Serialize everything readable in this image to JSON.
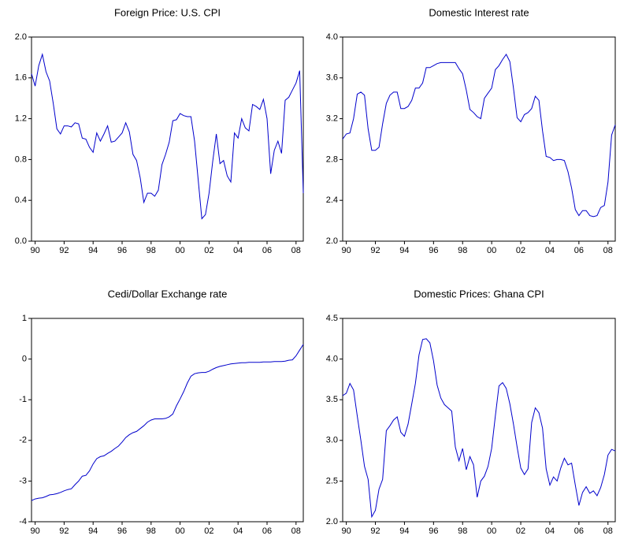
{
  "chart_data": [
    {
      "type": "line",
      "title": "Foreign Price: U.S. CPI",
      "color": "#0000cc",
      "x": [
        1989.75,
        1990,
        1990.25,
        1990.5,
        1990.75,
        1991,
        1991.25,
        1991.5,
        1991.75,
        1992,
        1992.25,
        1992.5,
        1992.75,
        1993,
        1993.25,
        1993.5,
        1993.75,
        1994,
        1994.25,
        1994.5,
        1994.75,
        1995,
        1995.25,
        1995.5,
        1995.75,
        1996,
        1996.25,
        1996.5,
        1996.75,
        1997,
        1997.25,
        1997.5,
        1997.75,
        1998,
        1998.25,
        1998.5,
        1998.75,
        1999,
        1999.25,
        1999.5,
        1999.75,
        2000,
        2000.25,
        2000.5,
        2000.75,
        2001,
        2001.25,
        2001.5,
        2001.75,
        2002,
        2002.25,
        2002.5,
        2002.75,
        2003,
        2003.25,
        2003.5,
        2003.75,
        2004,
        2004.25,
        2004.5,
        2004.75,
        2005,
        2005.25,
        2005.5,
        2005.75,
        2006,
        2006.25,
        2006.5,
        2006.75,
        2007,
        2007.25,
        2007.5,
        2007.75,
        2008,
        2008.25,
        2008.5
      ],
      "values": [
        1.64,
        1.52,
        1.72,
        1.83,
        1.66,
        1.57,
        1.35,
        1.1,
        1.05,
        1.13,
        1.13,
        1.12,
        1.16,
        1.15,
        1.01,
        1.0,
        0.92,
        0.87,
        1.06,
        0.98,
        1.05,
        1.13,
        0.97,
        0.98,
        1.02,
        1.06,
        1.16,
        1.07,
        0.85,
        0.79,
        0.62,
        0.38,
        0.47,
        0.47,
        0.44,
        0.5,
        0.75,
        0.85,
        0.97,
        1.18,
        1.19,
        1.25,
        1.23,
        1.22,
        1.22,
        0.98,
        0.6,
        0.22,
        0.26,
        0.47,
        0.78,
        1.05,
        0.76,
        0.79,
        0.64,
        0.58,
        1.06,
        1.01,
        1.2,
        1.11,
        1.08,
        1.34,
        1.32,
        1.29,
        1.39,
        1.2,
        0.66,
        0.89,
        0.98,
        0.86,
        1.38,
        1.41,
        1.48,
        1.55,
        1.67,
        0.47
      ],
      "xlim": [
        1989.75,
        2008.5
      ],
      "xticks": [
        {
          "value": 1990,
          "label": "90"
        },
        {
          "value": 1992,
          "label": "92"
        },
        {
          "value": 1994,
          "label": "94"
        },
        {
          "value": 1996,
          "label": "96"
        },
        {
          "value": 1998,
          "label": "98"
        },
        {
          "value": 2000,
          "label": "00"
        },
        {
          "value": 2002,
          "label": "02"
        },
        {
          "value": 2004,
          "label": "04"
        },
        {
          "value": 2006,
          "label": "06"
        },
        {
          "value": 2008,
          "label": "08"
        }
      ],
      "ylim": [
        0,
        2
      ],
      "yticks": [
        {
          "value": 0,
          "label": "0.0"
        },
        0.4,
        0.8,
        1.2,
        1.6,
        {
          "value": 2,
          "label": "2.0"
        }
      ]
    },
    {
      "type": "line",
      "title": "Domestic Interest rate",
      "color": "#0000cc",
      "x": [
        1989.75,
        1990,
        1990.25,
        1990.5,
        1990.75,
        1991,
        1991.25,
        1991.5,
        1991.75,
        1992,
        1992.25,
        1992.5,
        1992.75,
        1993,
        1993.25,
        1993.5,
        1993.75,
        1994,
        1994.25,
        1994.5,
        1994.75,
        1995,
        1995.25,
        1995.5,
        1995.75,
        1996,
        1996.25,
        1996.5,
        1996.75,
        1997,
        1997.25,
        1997.5,
        1997.75,
        1998,
        1998.25,
        1998.5,
        1998.75,
        1999,
        1999.25,
        1999.5,
        1999.75,
        2000,
        2000.25,
        2000.5,
        2000.75,
        2001,
        2001.25,
        2001.5,
        2001.75,
        2002,
        2002.25,
        2002.5,
        2002.75,
        2003,
        2003.25,
        2003.5,
        2003.75,
        2004,
        2004.25,
        2004.5,
        2004.75,
        2005,
        2005.25,
        2005.5,
        2005.75,
        2006,
        2006.25,
        2006.5,
        2006.75,
        2007,
        2007.25,
        2007.5,
        2007.75,
        2008,
        2008.25,
        2008.5
      ],
      "values": [
        3.0,
        3.05,
        3.06,
        3.2,
        3.44,
        3.46,
        3.43,
        3.1,
        2.89,
        2.89,
        2.92,
        3.15,
        3.35,
        3.43,
        3.46,
        3.46,
        3.3,
        3.3,
        3.32,
        3.38,
        3.5,
        3.5,
        3.55,
        3.7,
        3.7,
        3.72,
        3.74,
        3.75,
        3.75,
        3.75,
        3.75,
        3.75,
        3.69,
        3.64,
        3.48,
        3.29,
        3.26,
        3.22,
        3.2,
        3.4,
        3.45,
        3.5,
        3.68,
        3.72,
        3.78,
        3.83,
        3.76,
        3.5,
        3.21,
        3.17,
        3.24,
        3.26,
        3.3,
        3.42,
        3.38,
        3.08,
        2.83,
        2.82,
        2.79,
        2.8,
        2.8,
        2.79,
        2.68,
        2.52,
        2.31,
        2.25,
        2.3,
        2.3,
        2.25,
        2.24,
        2.25,
        2.33,
        2.35,
        2.58,
        3.04,
        3.14
      ],
      "xlim": [
        1989.75,
        2008.5
      ],
      "xticks": [
        {
          "value": 1990,
          "label": "90"
        },
        {
          "value": 1992,
          "label": "92"
        },
        {
          "value": 1994,
          "label": "94"
        },
        {
          "value": 1996,
          "label": "96"
        },
        {
          "value": 1998,
          "label": "98"
        },
        {
          "value": 2000,
          "label": "00"
        },
        {
          "value": 2002,
          "label": "02"
        },
        {
          "value": 2004,
          "label": "04"
        },
        {
          "value": 2006,
          "label": "06"
        },
        {
          "value": 2008,
          "label": "08"
        }
      ],
      "ylim": [
        2,
        4
      ],
      "yticks": [
        {
          "value": 2,
          "label": "2.0"
        },
        2.4,
        2.8,
        3.2,
        3.6,
        {
          "value": 4,
          "label": "4.0"
        }
      ]
    },
    {
      "type": "line",
      "title": "Cedi/Dollar Exchange rate",
      "color": "#0000cc",
      "x": [
        1989.75,
        1990,
        1990.25,
        1990.5,
        1990.75,
        1991,
        1991.25,
        1991.5,
        1991.75,
        1992,
        1992.25,
        1992.5,
        1992.75,
        1993,
        1993.25,
        1993.5,
        1993.75,
        1994,
        1994.25,
        1994.5,
        1994.75,
        1995,
        1995.25,
        1995.5,
        1995.75,
        1996,
        1996.25,
        1996.5,
        1996.75,
        1997,
        1997.25,
        1997.5,
        1997.75,
        1998,
        1998.25,
        1998.5,
        1998.75,
        1999,
        1999.25,
        1999.5,
        1999.75,
        2000,
        2000.25,
        2000.5,
        2000.75,
        2001,
        2001.25,
        2001.5,
        2001.75,
        2002,
        2002.25,
        2002.5,
        2002.75,
        2003,
        2003.25,
        2003.5,
        2003.75,
        2004,
        2004.25,
        2004.5,
        2004.75,
        2005,
        2005.25,
        2005.5,
        2005.75,
        2006,
        2006.25,
        2006.5,
        2006.75,
        2007,
        2007.25,
        2007.5,
        2007.75,
        2008,
        2008.25,
        2008.5
      ],
      "values": [
        -3.48,
        -3.44,
        -3.42,
        -3.41,
        -3.38,
        -3.34,
        -3.33,
        -3.31,
        -3.28,
        -3.24,
        -3.21,
        -3.19,
        -3.09,
        -3.0,
        -2.88,
        -2.86,
        -2.75,
        -2.58,
        -2.45,
        -2.4,
        -2.38,
        -2.32,
        -2.27,
        -2.2,
        -2.14,
        -2.04,
        -1.93,
        -1.86,
        -1.81,
        -1.78,
        -1.71,
        -1.64,
        -1.55,
        -1.5,
        -1.47,
        -1.47,
        -1.47,
        -1.46,
        -1.42,
        -1.35,
        -1.15,
        -0.98,
        -0.8,
        -0.59,
        -0.42,
        -0.36,
        -0.34,
        -0.33,
        -0.33,
        -0.3,
        -0.25,
        -0.21,
        -0.18,
        -0.16,
        -0.14,
        -0.12,
        -0.11,
        -0.1,
        -0.09,
        -0.09,
        -0.08,
        -0.08,
        -0.08,
        -0.08,
        -0.07,
        -0.07,
        -0.07,
        -0.06,
        -0.06,
        -0.06,
        -0.05,
        -0.03,
        -0.02,
        0.08,
        0.22,
        0.36
      ],
      "xlim": [
        1989.75,
        2008.5
      ],
      "xticks": [
        {
          "value": 1990,
          "label": "90"
        },
        {
          "value": 1992,
          "label": "92"
        },
        {
          "value": 1994,
          "label": "94"
        },
        {
          "value": 1996,
          "label": "96"
        },
        {
          "value": 1998,
          "label": "98"
        },
        {
          "value": 2000,
          "label": "00"
        },
        {
          "value": 2002,
          "label": "02"
        },
        {
          "value": 2004,
          "label": "04"
        },
        {
          "value": 2006,
          "label": "06"
        },
        {
          "value": 2008,
          "label": "08"
        }
      ],
      "ylim": [
        -4,
        1
      ],
      "yticks": [
        -4,
        -3,
        -2,
        -1,
        0,
        1
      ]
    },
    {
      "type": "line",
      "title": "Domestic Prices: Ghana CPI",
      "color": "#0000cc",
      "x": [
        1989.75,
        1990,
        1990.25,
        1990.5,
        1990.75,
        1991,
        1991.25,
        1991.5,
        1991.75,
        1992,
        1992.25,
        1992.5,
        1992.75,
        1993,
        1993.25,
        1993.5,
        1993.75,
        1994,
        1994.25,
        1994.5,
        1994.75,
        1995,
        1995.25,
        1995.5,
        1995.75,
        1996,
        1996.25,
        1996.5,
        1996.75,
        1997,
        1997.25,
        1997.5,
        1997.75,
        1998,
        1998.25,
        1998.5,
        1998.75,
        1999,
        1999.25,
        1999.5,
        1999.75,
        2000,
        2000.25,
        2000.5,
        2000.75,
        2001,
        2001.25,
        2001.5,
        2001.75,
        2002,
        2002.25,
        2002.5,
        2002.75,
        2003,
        2003.25,
        2003.5,
        2003.75,
        2004,
        2004.25,
        2004.5,
        2004.75,
        2005,
        2005.25,
        2005.5,
        2005.75,
        2006,
        2006.25,
        2006.5,
        2006.75,
        2007,
        2007.25,
        2007.5,
        2007.75,
        2008,
        2008.25,
        2008.5
      ],
      "values": [
        3.55,
        3.58,
        3.7,
        3.62,
        3.3,
        3.0,
        2.68,
        2.52,
        2.06,
        2.14,
        2.4,
        2.52,
        3.12,
        3.18,
        3.25,
        3.29,
        3.1,
        3.05,
        3.2,
        3.45,
        3.7,
        4.05,
        4.24,
        4.25,
        4.2,
        3.98,
        3.68,
        3.52,
        3.44,
        3.4,
        3.36,
        2.92,
        2.75,
        2.9,
        2.64,
        2.8,
        2.7,
        2.3,
        2.5,
        2.56,
        2.68,
        2.9,
        3.3,
        3.67,
        3.71,
        3.64,
        3.45,
        3.2,
        2.92,
        2.66,
        2.58,
        2.65,
        3.22,
        3.4,
        3.34,
        3.15,
        2.65,
        2.45,
        2.55,
        2.5,
        2.66,
        2.78,
        2.7,
        2.72,
        2.45,
        2.2,
        2.36,
        2.43,
        2.35,
        2.38,
        2.32,
        2.42,
        2.58,
        2.82,
        2.89,
        2.87
      ],
      "xlim": [
        1989.75,
        2008.5
      ],
      "xticks": [
        {
          "value": 1990,
          "label": "90"
        },
        {
          "value": 1992,
          "label": "92"
        },
        {
          "value": 1994,
          "label": "94"
        },
        {
          "value": 1996,
          "label": "96"
        },
        {
          "value": 1998,
          "label": "98"
        },
        {
          "value": 2000,
          "label": "00"
        },
        {
          "value": 2002,
          "label": "02"
        },
        {
          "value": 2004,
          "label": "04"
        },
        {
          "value": 2006,
          "label": "06"
        },
        {
          "value": 2008,
          "label": "08"
        }
      ],
      "ylim": [
        2,
        4.5
      ],
      "yticks": [
        {
          "value": 2,
          "label": "2.0"
        },
        2.5,
        {
          "value": 3,
          "label": "3.0"
        },
        3.5,
        {
          "value": 4,
          "label": "4.0"
        },
        4.5
      ]
    }
  ]
}
